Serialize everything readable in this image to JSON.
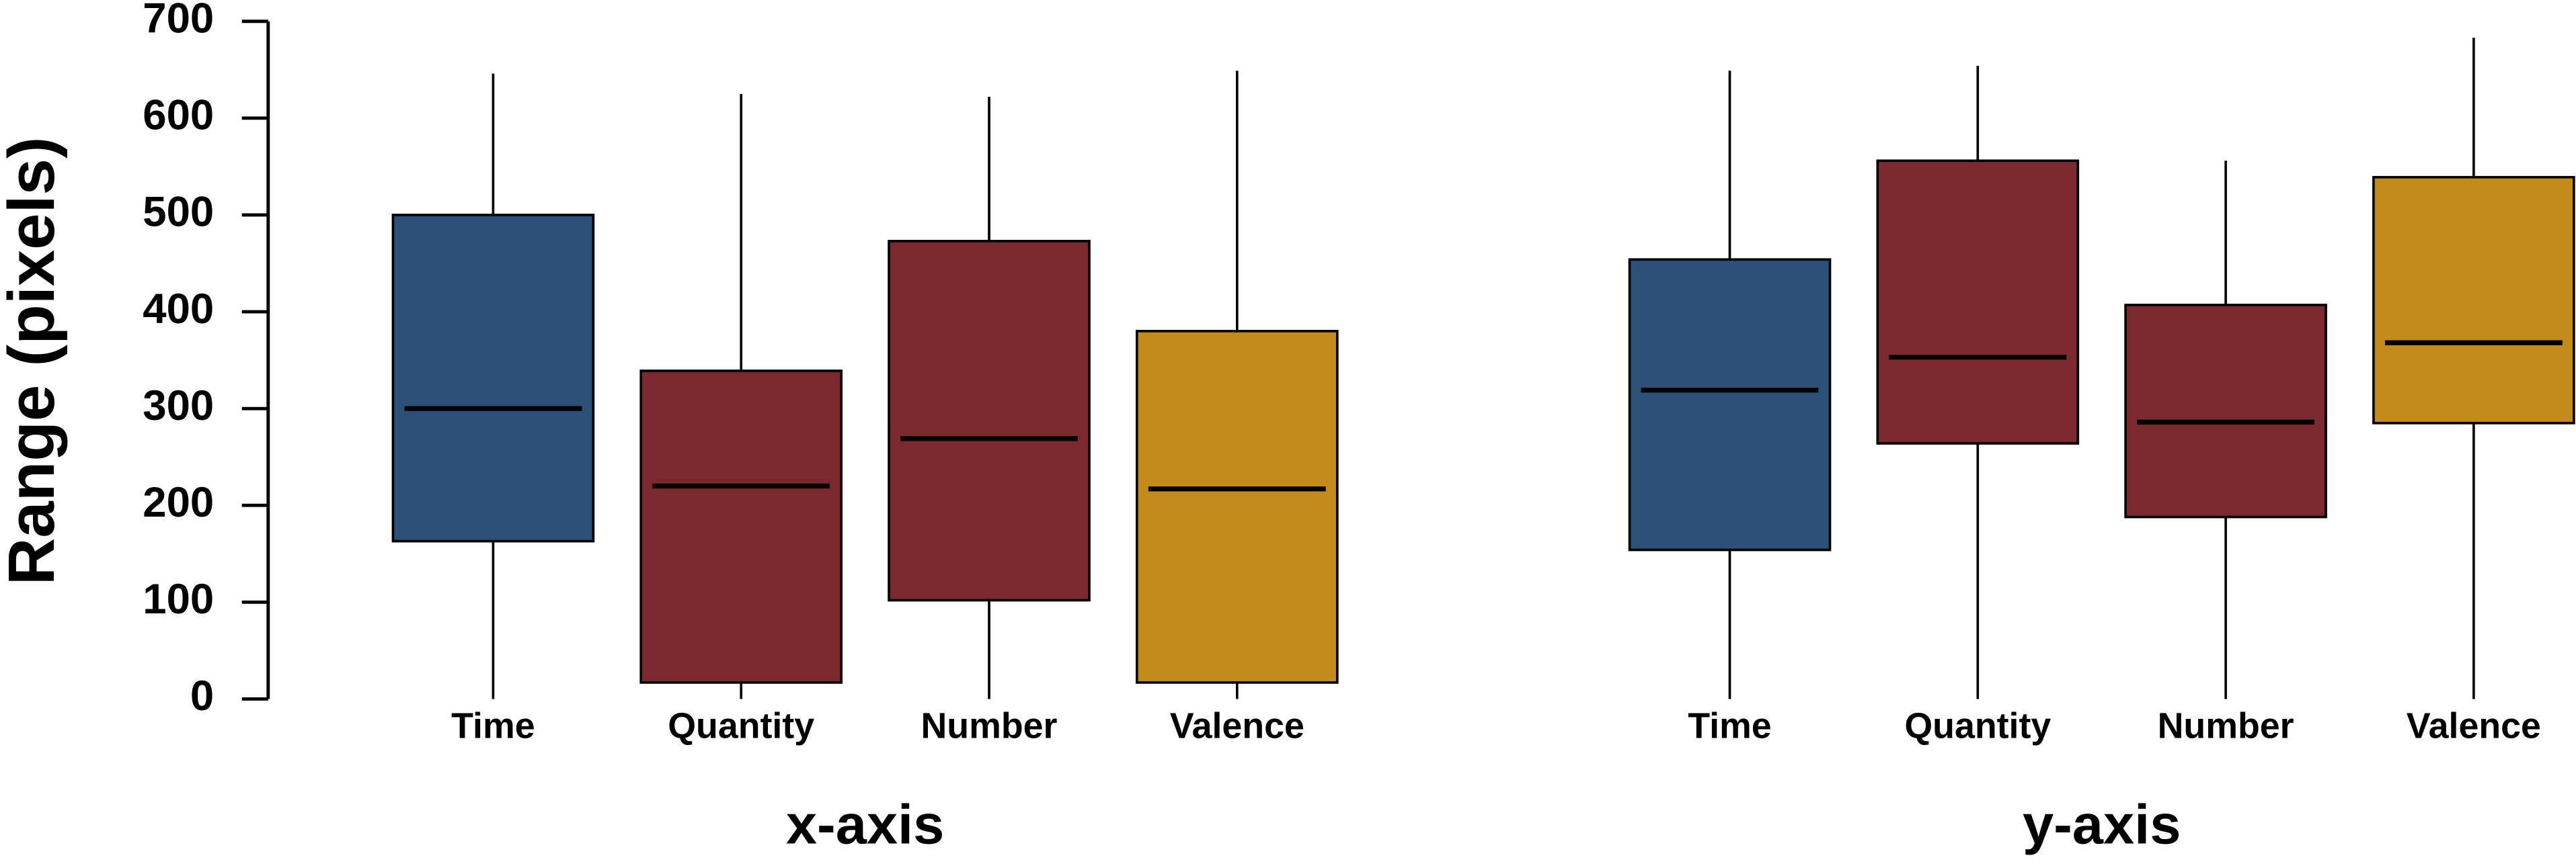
{
  "chart_data": {
    "type": "box",
    "ylabel": "Range (pixels)",
    "ylim": [
      0,
      700
    ],
    "yticks": [
      0,
      100,
      200,
      300,
      400,
      500,
      600,
      700
    ],
    "groups": [
      {
        "name": "x-axis",
        "categories": [
          "Time",
          "Quantity",
          "Number",
          "Valence"
        ],
        "colors": [
          "#2c5078",
          "#7a2a2e",
          "#7a2a2e",
          "#c38a1c"
        ],
        "boxes": [
          {
            "min": 0,
            "q1": 163,
            "median": 300,
            "q3": 500,
            "max": 646
          },
          {
            "min": 0,
            "q1": 17,
            "median": 220,
            "q3": 339,
            "max": 625
          },
          {
            "min": 0,
            "q1": 102,
            "median": 269,
            "q3": 473,
            "max": 622
          },
          {
            "min": 0,
            "q1": 17,
            "median": 217,
            "q3": 380,
            "max": 649
          }
        ]
      },
      {
        "name": "y-axis",
        "categories": [
          "Time",
          "Quantity",
          "Number",
          "Valence"
        ],
        "colors": [
          "#2c5078",
          "#7a2a2e",
          "#7a2a2e",
          "#c38a1c"
        ],
        "boxes": [
          {
            "min": 0,
            "q1": 154,
            "median": 319,
            "q3": 454,
            "max": 649
          },
          {
            "min": 0,
            "q1": 264,
            "median": 353,
            "q3": 556,
            "max": 654
          },
          {
            "min": 0,
            "q1": 188,
            "median": 286,
            "q3": 407,
            "max": 556
          },
          {
            "min": 0,
            "q1": 285,
            "median": 368,
            "q3": 539,
            "max": 683
          }
        ]
      }
    ]
  }
}
